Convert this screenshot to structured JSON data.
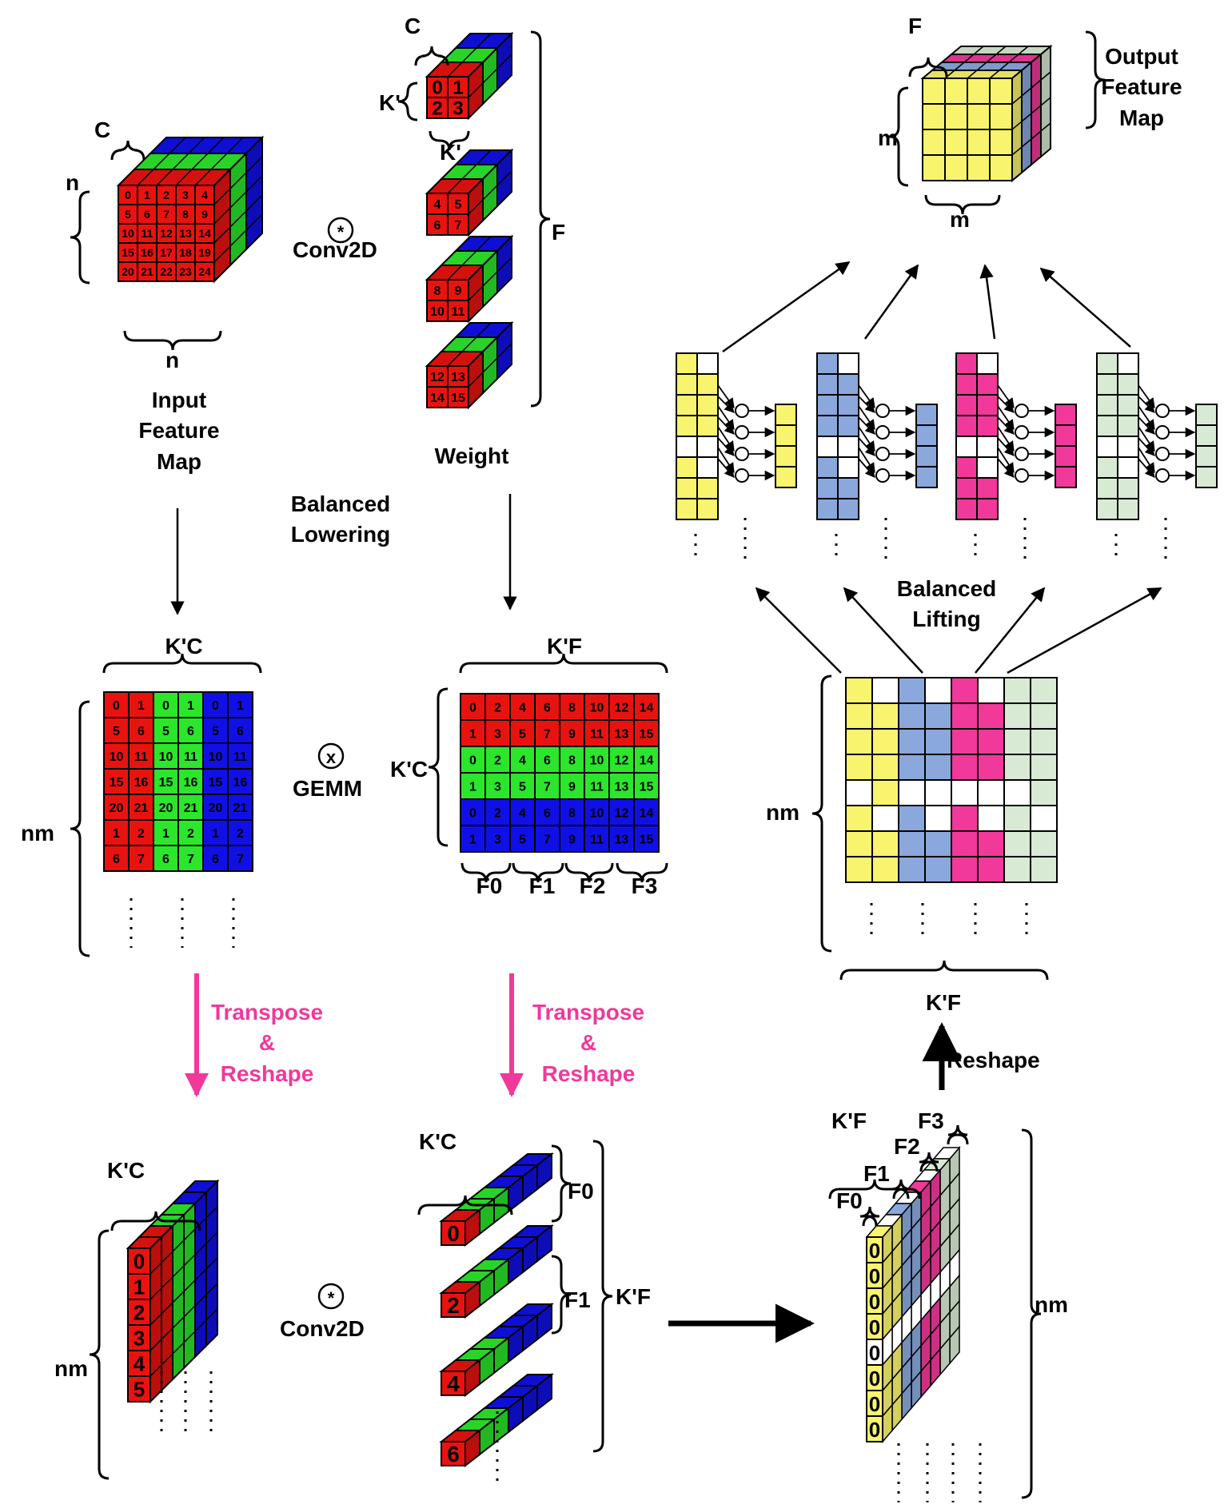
{
  "colors": {
    "red": "#e8130f",
    "green": "#2be62b",
    "blue": "#1010e6",
    "yellow": "#f9f46e",
    "lblue": "#8aa8dc",
    "pink": "#f0399a",
    "lgreen": "#d8ead3",
    "accent": "#f0399a",
    "empty": "#ffffff"
  },
  "icons": {
    "conv_op": "asterisk-circle-icon",
    "gemm_op": "x-circle-icon",
    "add_op": "plus-circle-icon"
  },
  "labels": {
    "input_c": "C",
    "input_n_side": "n",
    "input_n_bottom": "n",
    "input_title": [
      "Input",
      "Feature",
      "Map"
    ],
    "conv_top": "Conv2D",
    "weight_c": "C",
    "weight_k_side": "K'",
    "weight_k_bottom": "K'",
    "weight_f": "F",
    "weight_title": "Weight",
    "balanced_lowering": [
      "Balanced",
      "Lowering"
    ],
    "lowered_input_top": "K'C",
    "lowered_input_side": "nm",
    "gemm": "GEMM",
    "lowered_weight_top": "K'F",
    "lowered_weight_side": "K'C",
    "filters": [
      "F0",
      "F1",
      "F2",
      "F3"
    ],
    "transpose": [
      "Transpose",
      "&",
      "Reshape"
    ],
    "bl_kc": "K'C",
    "bl_nm": "nm",
    "conv_bottom": "Conv2D",
    "bm_kc": "K'C",
    "bm_f0": "F0",
    "bm_f1": "F1",
    "bm_kf": "K'F",
    "br_kf": "K'F",
    "br_f": [
      "F0",
      "F1",
      "F2",
      "F3"
    ],
    "br_nm": "nm",
    "reshape": "Reshape",
    "rm_kf": "K'F",
    "rm_nm": "nm",
    "balanced_lifting": [
      "Balanced",
      "Lifting"
    ],
    "out_f": "F",
    "out_m_side": "m",
    "out_m_bottom": "m",
    "output_title": [
      "Output",
      "Feature",
      "Map"
    ]
  },
  "input_map_numbers": [
    [
      "0",
      "1",
      "2",
      "3",
      "4"
    ],
    [
      "5",
      "6",
      "7",
      "8",
      "9"
    ],
    [
      "10",
      "11",
      "12",
      "13",
      "14"
    ],
    [
      "15",
      "16",
      "17",
      "18",
      "19"
    ],
    [
      "20",
      "21",
      "22",
      "23",
      "24"
    ]
  ],
  "weight_kernels": [
    [
      "0",
      "1",
      "2",
      "3"
    ],
    [
      "4",
      "5",
      "6",
      "7"
    ],
    [
      "8",
      "9",
      "10",
      "11"
    ],
    [
      "12",
      "13",
      "14",
      "15"
    ]
  ],
  "lowered_input_rows": [
    [
      "0",
      "1"
    ],
    [
      "5",
      "6"
    ],
    [
      "10",
      "11"
    ],
    [
      "15",
      "16"
    ],
    [
      "20",
      "21"
    ],
    [
      "1",
      "2"
    ],
    [
      "6",
      "7"
    ]
  ],
  "lowered_weight_rows": [
    [
      "0",
      "2",
      "4",
      "6",
      "8",
      "10",
      "12",
      "14"
    ],
    [
      "1",
      "3",
      "5",
      "7",
      "9",
      "11",
      "13",
      "15"
    ]
  ],
  "transposed_input_numbers": [
    "0",
    "1",
    "2",
    "3",
    "4",
    "5"
  ],
  "transposed_weight_numbers": [
    "0",
    "2",
    "4",
    "6"
  ],
  "result_cube_numbers": [
    "0",
    "0",
    "0",
    "0",
    "0",
    "0",
    "0",
    "0"
  ]
}
